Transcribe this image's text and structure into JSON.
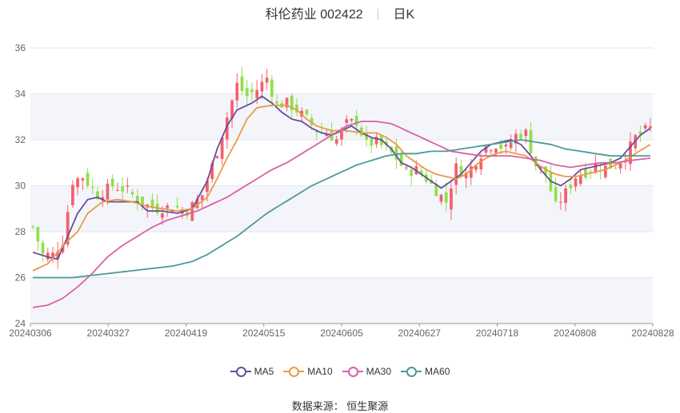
{
  "title": {
    "name": "科伦药业 002422",
    "period": "日K"
  },
  "source_text": "数据来源：  恒生聚源",
  "colors": {
    "up": "#f4606c",
    "down": "#8fe04a",
    "ma5": "#6a4c9c",
    "ma10": "#e79a47",
    "ma30": "#d962a4",
    "ma60": "#4c9a9b",
    "band": "#f4f5fb",
    "grid": "#e3e6ef"
  },
  "chart_data": {
    "type": "candlestick",
    "ylim": [
      24,
      36
    ],
    "yticks": [
      24,
      26,
      28,
      30,
      32,
      34,
      36
    ],
    "x_tick_labels": [
      "20240306",
      "20240327",
      "20240419",
      "20240515",
      "20240605",
      "20240627",
      "20240718",
      "20240808",
      "20240828"
    ],
    "trading_days": 125,
    "legend": [
      {
        "key": "ma5",
        "label": "MA5"
      },
      {
        "key": "ma10",
        "label": "MA10"
      },
      {
        "key": "ma30",
        "label": "MA30"
      },
      {
        "key": "ma60",
        "label": "MA60"
      }
    ],
    "close_anchors": [
      [
        0,
        28.2
      ],
      [
        2,
        27.0
      ],
      [
        4,
        27.0
      ],
      [
        6,
        27.6
      ],
      [
        8,
        30.2
      ],
      [
        10,
        30.4
      ],
      [
        13,
        29.6
      ],
      [
        16,
        30.0
      ],
      [
        19,
        29.8
      ],
      [
        22,
        29.2
      ],
      [
        25,
        29.0
      ],
      [
        28,
        29.1
      ],
      [
        31,
        28.9
      ],
      [
        34,
        29.6
      ],
      [
        37,
        31.5
      ],
      [
        39,
        33.0
      ],
      [
        41,
        34.4
      ],
      [
        43,
        33.9
      ],
      [
        45,
        34.2
      ],
      [
        47,
        34.7
      ],
      [
        49,
        33.5
      ],
      [
        51,
        33.6
      ],
      [
        53,
        33.3
      ],
      [
        55,
        32.9
      ],
      [
        57,
        32.4
      ],
      [
        59,
        32.3
      ],
      [
        61,
        32.0
      ],
      [
        63,
        32.7
      ],
      [
        65,
        32.8
      ],
      [
        67,
        31.8
      ],
      [
        69,
        31.9
      ],
      [
        71,
        31.6
      ],
      [
        73,
        31.2
      ],
      [
        75,
        30.6
      ],
      [
        77,
        30.7
      ],
      [
        79,
        30.3
      ],
      [
        81,
        29.8
      ],
      [
        83,
        29.3
      ],
      [
        85,
        30.8
      ],
      [
        87,
        30.5
      ],
      [
        89,
        31.1
      ],
      [
        91,
        31.7
      ],
      [
        93,
        31.8
      ],
      [
        95,
        31.6
      ],
      [
        97,
        32.2
      ],
      [
        99,
        32.3
      ],
      [
        101,
        30.9
      ],
      [
        103,
        30.5
      ],
      [
        105,
        29.1
      ],
      [
        107,
        29.7
      ],
      [
        109,
        30.4
      ],
      [
        111,
        30.6
      ],
      [
        113,
        30.9
      ],
      [
        115,
        30.8
      ],
      [
        117,
        30.9
      ],
      [
        119,
        31.3
      ],
      [
        121,
        32.1
      ],
      [
        123,
        32.4
      ],
      [
        124,
        32.5
      ]
    ],
    "ma5": [
      [
        0,
        27.1
      ],
      [
        3,
        26.9
      ],
      [
        5,
        26.8
      ],
      [
        7,
        27.8
      ],
      [
        9,
        28.8
      ],
      [
        11,
        29.4
      ],
      [
        13,
        29.5
      ],
      [
        15,
        29.3
      ],
      [
        18,
        29.3
      ],
      [
        21,
        29.3
      ],
      [
        23,
        28.9
      ],
      [
        26,
        28.9
      ],
      [
        29,
        28.8
      ],
      [
        32,
        29.0
      ],
      [
        35,
        30.2
      ],
      [
        37,
        31.6
      ],
      [
        39,
        32.6
      ],
      [
        41,
        33.3
      ],
      [
        44,
        33.6
      ],
      [
        46,
        33.9
      ],
      [
        48,
        33.6
      ],
      [
        50,
        33.2
      ],
      [
        52,
        32.9
      ],
      [
        54,
        32.8
      ],
      [
        56,
        32.5
      ],
      [
        58,
        32.3
      ],
      [
        60,
        32.2
      ],
      [
        62,
        32.4
      ],
      [
        64,
        32.6
      ],
      [
        66,
        32.3
      ],
      [
        68,
        32.1
      ],
      [
        70,
        32.0
      ],
      [
        72,
        31.6
      ],
      [
        74,
        31.0
      ],
      [
        76,
        30.8
      ],
      [
        78,
        30.5
      ],
      [
        80,
        30.2
      ],
      [
        82,
        29.9
      ],
      [
        84,
        30.2
      ],
      [
        86,
        30.5
      ],
      [
        88,
        31.0
      ],
      [
        90,
        31.5
      ],
      [
        92,
        31.8
      ],
      [
        94,
        31.9
      ],
      [
        96,
        32.0
      ],
      [
        98,
        31.8
      ],
      [
        100,
        31.3
      ],
      [
        102,
        30.7
      ],
      [
        104,
        30.2
      ],
      [
        106,
        30.0
      ],
      [
        108,
        30.3
      ],
      [
        110,
        30.7
      ],
      [
        112,
        30.8
      ],
      [
        114,
        30.9
      ],
      [
        116,
        31.0
      ],
      [
        118,
        31.2
      ],
      [
        120,
        31.7
      ],
      [
        122,
        32.2
      ],
      [
        124,
        32.5
      ]
    ],
    "ma10": [
      [
        0,
        26.3
      ],
      [
        3,
        26.6
      ],
      [
        5,
        27.1
      ],
      [
        7,
        27.6
      ],
      [
        9,
        28.0
      ],
      [
        11,
        28.8
      ],
      [
        14,
        29.3
      ],
      [
        17,
        29.4
      ],
      [
        20,
        29.3
      ],
      [
        23,
        29.1
      ],
      [
        26,
        29.0
      ],
      [
        29,
        28.9
      ],
      [
        32,
        29.0
      ],
      [
        35,
        29.5
      ],
      [
        37,
        30.3
      ],
      [
        39,
        31.2
      ],
      [
        41,
        32.0
      ],
      [
        43,
        32.9
      ],
      [
        45,
        33.4
      ],
      [
        48,
        33.5
      ],
      [
        51,
        33.5
      ],
      [
        53,
        33.3
      ],
      [
        55,
        32.9
      ],
      [
        57,
        32.6
      ],
      [
        60,
        32.4
      ],
      [
        63,
        32.4
      ],
      [
        66,
        32.3
      ],
      [
        69,
        32.3
      ],
      [
        71,
        32.1
      ],
      [
        73,
        31.8
      ],
      [
        75,
        31.3
      ],
      [
        77,
        31.0
      ],
      [
        79,
        30.7
      ],
      [
        81,
        30.5
      ],
      [
        83,
        30.4
      ],
      [
        85,
        30.3
      ],
      [
        87,
        30.5
      ],
      [
        89,
        30.9
      ],
      [
        91,
        31.2
      ],
      [
        93,
        31.4
      ],
      [
        95,
        31.5
      ],
      [
        97,
        31.4
      ],
      [
        99,
        31.3
      ],
      [
        101,
        31.0
      ],
      [
        103,
        30.7
      ],
      [
        105,
        30.5
      ],
      [
        107,
        30.4
      ],
      [
        109,
        30.4
      ],
      [
        111,
        30.5
      ],
      [
        113,
        30.6
      ],
      [
        115,
        30.7
      ],
      [
        117,
        30.9
      ],
      [
        119,
        31.1
      ],
      [
        121,
        31.4
      ],
      [
        124,
        31.8
      ]
    ],
    "ma30": [
      [
        0,
        24.7
      ],
      [
        3,
        24.8
      ],
      [
        6,
        25.1
      ],
      [
        9,
        25.6
      ],
      [
        12,
        26.2
      ],
      [
        15,
        26.9
      ],
      [
        18,
        27.4
      ],
      [
        21,
        27.8
      ],
      [
        24,
        28.2
      ],
      [
        27,
        28.5
      ],
      [
        30,
        28.7
      ],
      [
        33,
        28.9
      ],
      [
        36,
        29.2
      ],
      [
        39,
        29.5
      ],
      [
        42,
        29.9
      ],
      [
        45,
        30.3
      ],
      [
        48,
        30.7
      ],
      [
        51,
        31.0
      ],
      [
        54,
        31.4
      ],
      [
        57,
        31.8
      ],
      [
        60,
        32.2
      ],
      [
        63,
        32.6
      ],
      [
        66,
        32.8
      ],
      [
        69,
        32.8
      ],
      [
        72,
        32.7
      ],
      [
        75,
        32.4
      ],
      [
        78,
        32.1
      ],
      [
        81,
        31.8
      ],
      [
        84,
        31.5
      ],
      [
        87,
        31.4
      ],
      [
        90,
        31.3
      ],
      [
        93,
        31.3
      ],
      [
        96,
        31.3
      ],
      [
        99,
        31.2
      ],
      [
        102,
        31.1
      ],
      [
        105,
        30.9
      ],
      [
        108,
        30.8
      ],
      [
        111,
        30.9
      ],
      [
        114,
        31.0
      ],
      [
        117,
        31.0
      ],
      [
        120,
        31.1
      ],
      [
        124,
        31.2
      ]
    ],
    "ma60": [
      [
        0,
        26.0
      ],
      [
        4,
        26.0
      ],
      [
        8,
        26.0
      ],
      [
        12,
        26.1
      ],
      [
        16,
        26.2
      ],
      [
        20,
        26.3
      ],
      [
        24,
        26.4
      ],
      [
        28,
        26.5
      ],
      [
        32,
        26.7
      ],
      [
        35,
        27.0
      ],
      [
        38,
        27.4
      ],
      [
        41,
        27.8
      ],
      [
        44,
        28.3
      ],
      [
        47,
        28.8
      ],
      [
        50,
        29.2
      ],
      [
        53,
        29.6
      ],
      [
        56,
        30.0
      ],
      [
        59,
        30.3
      ],
      [
        62,
        30.6
      ],
      [
        65,
        30.9
      ],
      [
        68,
        31.1
      ],
      [
        71,
        31.3
      ],
      [
        74,
        31.4
      ],
      [
        77,
        31.4
      ],
      [
        80,
        31.5
      ],
      [
        83,
        31.5
      ],
      [
        86,
        31.6
      ],
      [
        89,
        31.7
      ],
      [
        92,
        31.8
      ],
      [
        95,
        31.9
      ],
      [
        98,
        32.0
      ],
      [
        101,
        31.9
      ],
      [
        104,
        31.8
      ],
      [
        107,
        31.6
      ],
      [
        110,
        31.5
      ],
      [
        113,
        31.4
      ],
      [
        116,
        31.3
      ],
      [
        119,
        31.3
      ],
      [
        122,
        31.3
      ],
      [
        124,
        31.3
      ]
    ]
  }
}
